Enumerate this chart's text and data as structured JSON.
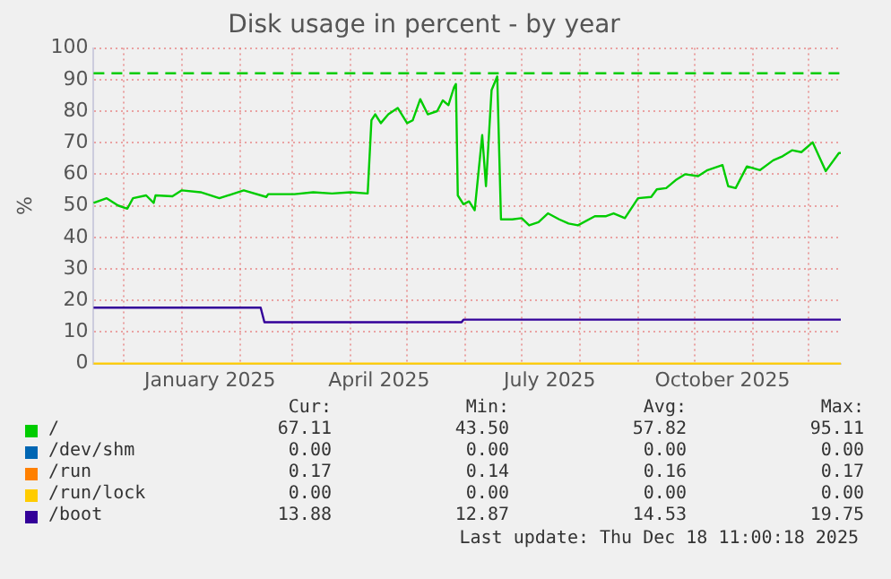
{
  "chart_data": {
    "type": "line",
    "title": "Disk usage in percent - by year",
    "ylabel": "%",
    "xlim": [
      "2024-11-15",
      "2025-12-18"
    ],
    "xticks": [
      {
        "value": "2024-12-01",
        "label": null
      },
      {
        "value": "2025-01-01",
        "label": null
      },
      {
        "value": "2025-01-16",
        "label": "January 2025"
      },
      {
        "value": "2025-02-01",
        "label": null
      },
      {
        "value": "2025-03-01",
        "label": null
      },
      {
        "value": "2025-04-01",
        "label": null
      },
      {
        "value": "2025-04-16",
        "label": "April 2025"
      },
      {
        "value": "2025-05-01",
        "label": null
      },
      {
        "value": "2025-06-01",
        "label": null
      },
      {
        "value": "2025-07-01",
        "label": null
      },
      {
        "value": "2025-07-16",
        "label": "July 2025"
      },
      {
        "value": "2025-08-01",
        "label": null
      },
      {
        "value": "2025-09-01",
        "label": null
      },
      {
        "value": "2025-10-01",
        "label": null
      },
      {
        "value": "2025-10-16",
        "label": "October 2025"
      },
      {
        "value": "2025-11-01",
        "label": null
      },
      {
        "value": "2025-12-01",
        "label": null
      }
    ],
    "ylim": [
      0,
      100
    ],
    "yticks": [
      0,
      10,
      20,
      30,
      40,
      50,
      60,
      70,
      80,
      90,
      100
    ],
    "grid": true,
    "legend": "bottom",
    "marker": "none",
    "ref_lines": [
      {
        "axis": "y",
        "value": 92,
        "label": null,
        "color": "#00cc00",
        "line_style": "dashed"
      }
    ],
    "series": [
      {
        "name": "/",
        "color": "#00cc00",
        "x": [
          "2024-11-15",
          "2024-11-22",
          "2024-11-28",
          "2024-12-03",
          "2024-12-06",
          "2024-12-13",
          "2024-12-17",
          "2024-12-18",
          "2024-12-27",
          "2025-01-01",
          "2025-01-11",
          "2025-01-21",
          "2025-02-03",
          "2025-02-15",
          "2025-02-16",
          "2025-03-02",
          "2025-03-12",
          "2025-03-22",
          "2025-04-01",
          "2025-04-10",
          "2025-04-12",
          "2025-04-14",
          "2025-04-17",
          "2025-04-21",
          "2025-04-26",
          "2025-05-01",
          "2025-05-04",
          "2025-05-08",
          "2025-05-12",
          "2025-05-17",
          "2025-05-20",
          "2025-05-23",
          "2025-05-26",
          "2025-05-27",
          "2025-05-28",
          "2025-05-31",
          "2025-06-03",
          "2025-06-06",
          "2025-06-10",
          "2025-06-12",
          "2025-06-15",
          "2025-06-18",
          "2025-06-20",
          "2025-06-26",
          "2025-07-01",
          "2025-07-05",
          "2025-07-10",
          "2025-07-15",
          "2025-07-21",
          "2025-07-26",
          "2025-07-31",
          "2025-08-09",
          "2025-08-15",
          "2025-08-19",
          "2025-08-25",
          "2025-09-01",
          "2025-09-08",
          "2025-09-11",
          "2025-09-16",
          "2025-09-21",
          "2025-09-26",
          "2025-10-03",
          "2025-10-08",
          "2025-10-16",
          "2025-10-19",
          "2025-10-23",
          "2025-10-29",
          "2025-11-05",
          "2025-11-12",
          "2025-11-17",
          "2025-11-22",
          "2025-11-27",
          "2025-12-03",
          "2025-12-10",
          "2025-12-17",
          "2025-12-18"
        ],
        "values": [
          50.9,
          52.4,
          50.1,
          49.1,
          52.4,
          53.3,
          50.9,
          53.3,
          53,
          54.9,
          54.3,
          52.4,
          54.9,
          52.8,
          53.7,
          53.7,
          54.3,
          53.9,
          54.3,
          53.9,
          77.1,
          79,
          76.2,
          79,
          81,
          76.2,
          77.1,
          83.8,
          79,
          80,
          83.4,
          81.9,
          87.6,
          88.6,
          53.3,
          50.5,
          51.4,
          48.6,
          72.4,
          56.2,
          86.7,
          91,
          45.7,
          45.7,
          46.1,
          43.8,
          44.8,
          47.6,
          45.7,
          44.4,
          43.8,
          46.7,
          46.7,
          47.6,
          46.1,
          52.4,
          52.8,
          55.2,
          55.6,
          58.1,
          60,
          59.4,
          61.3,
          62.9,
          56.2,
          55.6,
          62.5,
          61.3,
          64.4,
          65.7,
          67.6,
          67,
          70.1,
          61,
          66.7,
          66.7
        ]
      },
      {
        "name": "/dev/shm",
        "color": "#0066b3"
      },
      {
        "name": "/run",
        "color": "#ff8000"
      },
      {
        "name": "/run/lock",
        "color": "#ffcc00",
        "x": [
          "2024-11-15",
          "2025-12-18"
        ],
        "values": [
          0,
          0
        ]
      },
      {
        "name": "/boot",
        "color": "#330099",
        "x": [
          "2024-11-15",
          "2025-02-12",
          "2025-02-14",
          "2025-05-30",
          "2025-05-31",
          "2025-12-18"
        ],
        "values": [
          17.7,
          17.7,
          13.1,
          13.1,
          13.9,
          13.9
        ]
      }
    ],
    "annotations": [
      "Cur:",
      "Min:",
      "Avg:",
      "Max:",
      "67.11",
      "43.50",
      "57.82",
      "95.11",
      "0.00",
      "0.00",
      "0.00",
      "0.00",
      "0.17",
      "0.14",
      "0.16",
      "0.17",
      "0.00",
      "0.00",
      "0.00",
      "0.00",
      "13.88",
      "12.87",
      "14.53",
      "19.75",
      "Last update: Thu Dec 18 11:00:18 2025"
    ]
  }
}
